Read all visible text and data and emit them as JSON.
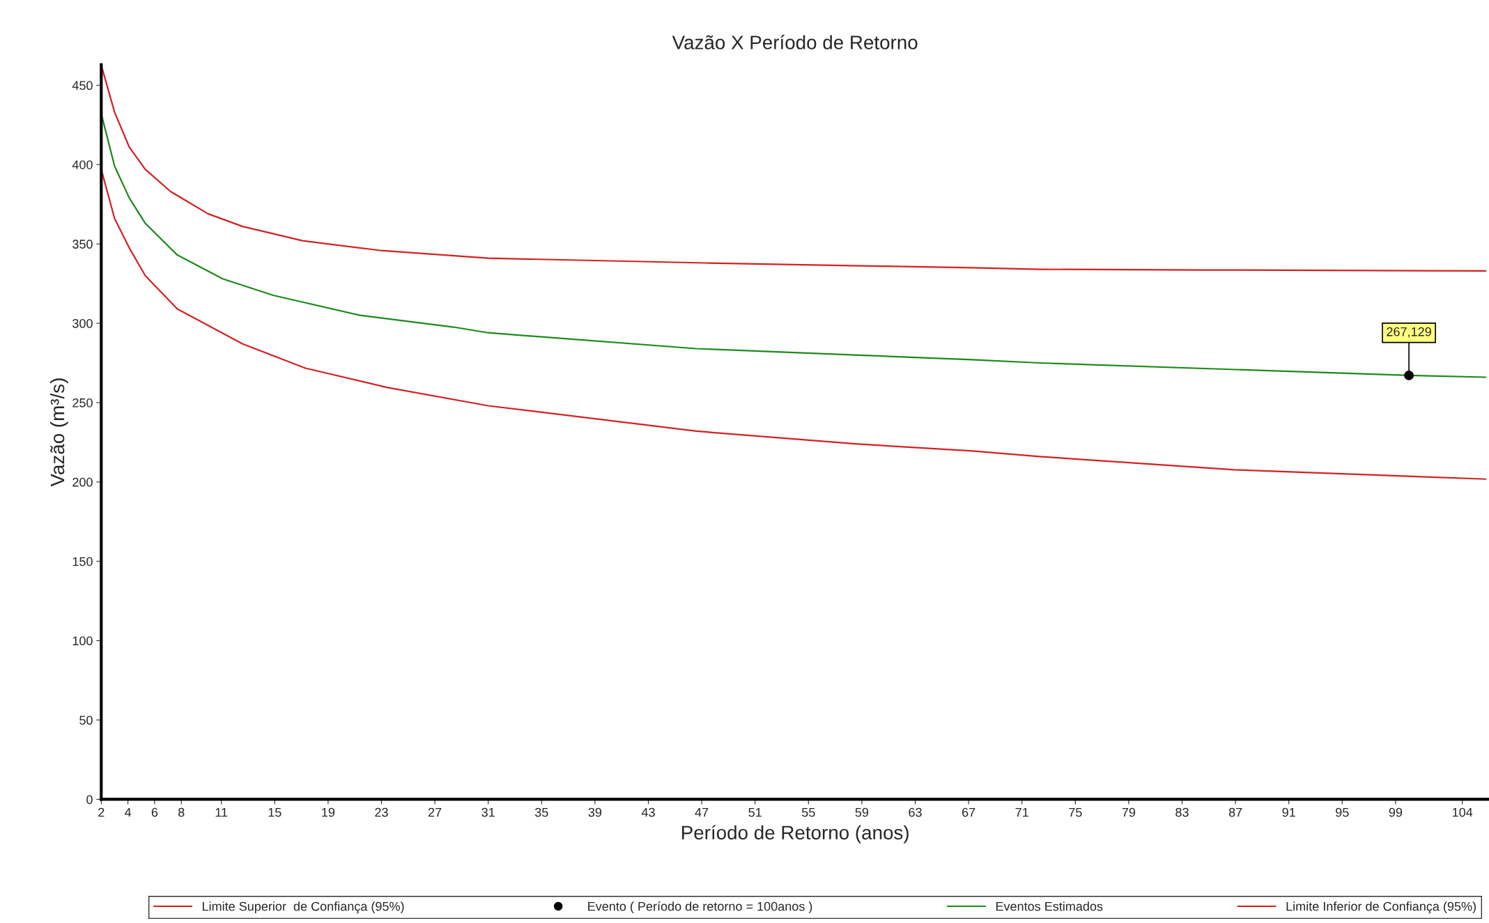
{
  "chart_data": {
    "type": "line",
    "title": "Vazão X Período de Retorno",
    "xlabel": "Período de Retorno (anos)",
    "ylabel": "Vazão (m³/s)",
    "xlim": [
      2,
      106
    ],
    "xticks": [
      2,
      4,
      6,
      8,
      11,
      15,
      19,
      23,
      27,
      31,
      35,
      39,
      43,
      47,
      51,
      55,
      59,
      63,
      67,
      71,
      75,
      79,
      83,
      87,
      91,
      95,
      99,
      104
    ],
    "ylim": [
      0,
      463
    ],
    "yticks": [
      0,
      50,
      100,
      150,
      200,
      250,
      300,
      350,
      400,
      450
    ],
    "grid": false,
    "legend": "bottom",
    "series": [
      {
        "name": "Limite Superior  de Confiança (95%)",
        "color": "#d42020",
        "x": [
          2,
          3,
          4.1,
          5.3,
          7.2,
          10,
          12.6,
          17.1,
          22.8,
          31,
          47.3,
          60.4,
          67.3,
          72.3,
          84.5,
          105.75
        ],
        "values": [
          462.7,
          433,
          411,
          397,
          383,
          369,
          361,
          352,
          346,
          341,
          338,
          336,
          335,
          334,
          333.6,
          333
        ]
      },
      {
        "name": "Evento ( Período de retorno = 100anos )",
        "type": "scatter",
        "color": "#000000",
        "marker": "circle",
        "x": [
          100
        ],
        "values": [
          267.129
        ]
      },
      {
        "name": "Eventos Estimados",
        "color": "#1a8a1a",
        "x": [
          2,
          3,
          4.1,
          5.3,
          7.7,
          11.1,
          14.9,
          21.4,
          28.4,
          31,
          46.6,
          58.5,
          67.3,
          72.3,
          100,
          105.75
        ],
        "values": [
          432,
          399,
          379,
          363,
          343,
          328,
          317.6,
          305,
          297.6,
          294,
          284,
          280,
          277,
          275,
          267.129,
          266
        ]
      },
      {
        "name": "Limite Inferior de Confiança (95%)",
        "color": "#d42020",
        "x": [
          2,
          3,
          4.1,
          5.3,
          7.7,
          12.6,
          17.3,
          23.4,
          31,
          46.6,
          58.5,
          67.3,
          72.3,
          86.9,
          105.75
        ],
        "values": [
          397,
          366,
          347.5,
          330,
          309,
          287,
          271.7,
          259.6,
          248,
          232,
          224,
          219.5,
          216,
          207.7,
          201.8
        ]
      }
    ],
    "annotations": [
      {
        "text": "267,129",
        "x": 100,
        "y": 267.129
      }
    ]
  }
}
